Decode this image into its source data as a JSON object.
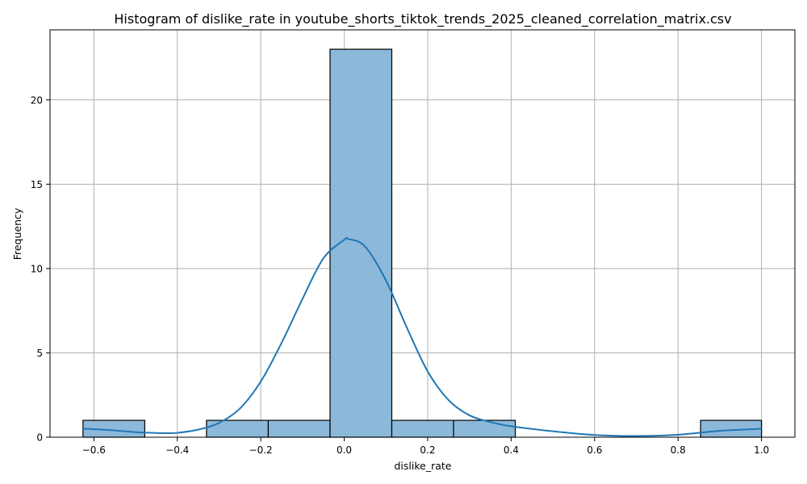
{
  "chart_data": {
    "type": "bar",
    "subtype": "histogram",
    "title": "Histogram of dislike_rate in youtube_shorts_tiktok_trends_2025_cleaned_correlation_matrix.csv",
    "xlabel": "dislike_rate",
    "ylabel": "Frequency",
    "xlim": [
      -0.705,
      1.08
    ],
    "ylim": [
      0,
      24.15
    ],
    "x_ticks": [
      -0.6,
      -0.4,
      -0.2,
      0.0,
      0.2,
      0.4,
      0.6,
      0.8,
      1.0
    ],
    "x_tick_labels": [
      "−0.6",
      "−0.4",
      "−0.2",
      "0.0",
      "0.2",
      "0.4",
      "0.6",
      "0.8",
      "1.0"
    ],
    "y_ticks": [
      0,
      5,
      10,
      15,
      20
    ],
    "y_tick_labels": [
      "0",
      "5",
      "10",
      "15",
      "20"
    ],
    "grid": true,
    "legend": false,
    "bins": [
      {
        "x0": -0.626,
        "x1": -0.478,
        "count": 1
      },
      {
        "x0": -0.478,
        "x1": -0.33,
        "count": 0
      },
      {
        "x0": -0.33,
        "x1": -0.182,
        "count": 1
      },
      {
        "x0": -0.182,
        "x1": -0.034,
        "count": 1
      },
      {
        "x0": -0.034,
        "x1": 0.114,
        "count": 23
      },
      {
        "x0": 0.114,
        "x1": 0.262,
        "count": 1
      },
      {
        "x0": 0.262,
        "x1": 0.41,
        "count": 1
      },
      {
        "x0": 0.41,
        "x1": 0.558,
        "count": 0
      },
      {
        "x0": 0.558,
        "x1": 0.706,
        "count": 0
      },
      {
        "x0": 0.706,
        "x1": 0.854,
        "count": 0
      },
      {
        "x0": 0.854,
        "x1": 1.0,
        "count": 1
      }
    ],
    "kde_curve": {
      "x": [
        -0.626,
        -0.6,
        -0.55,
        -0.5,
        -0.45,
        -0.43,
        -0.4,
        -0.35,
        -0.3,
        -0.25,
        -0.2,
        -0.15,
        -0.1,
        -0.05,
        0.0,
        0.01,
        0.05,
        0.1,
        0.15,
        0.2,
        0.25,
        0.3,
        0.35,
        0.4,
        0.5,
        0.6,
        0.7,
        0.8,
        0.9,
        1.0
      ],
      "y": [
        0.5,
        0.48,
        0.4,
        0.3,
        0.25,
        0.24,
        0.26,
        0.45,
        0.85,
        1.7,
        3.3,
        5.6,
        8.2,
        10.6,
        11.7,
        11.75,
        11.3,
        9.3,
        6.5,
        3.9,
        2.2,
        1.3,
        0.9,
        0.65,
        0.35,
        0.13,
        0.07,
        0.15,
        0.38,
        0.5
      ]
    },
    "colors": {
      "bar_fill": "#8cb8da",
      "bar_edge": "#000000",
      "kde_line": "#1f77b4",
      "grid": "#b0b0b0"
    }
  }
}
